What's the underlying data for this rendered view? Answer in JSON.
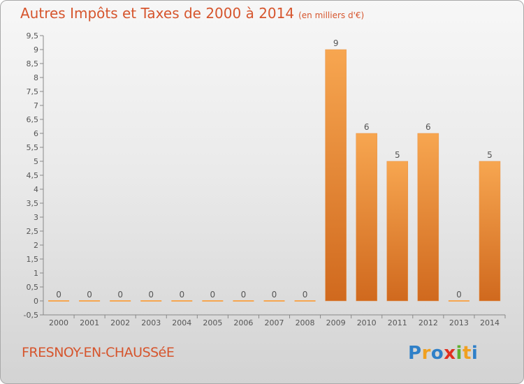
{
  "title": "Autres Impôts et Taxes de 2000 à 2014",
  "unit_note": "(en milliers d'€)",
  "commune": "FRESNOY-EN-CHAUSSéE",
  "logo": {
    "text": "Proxiti",
    "letters": [
      "P",
      "r",
      "o",
      "x",
      "i",
      "t",
      "i"
    ],
    "colors": [
      "#2f80c8",
      "#f0a020",
      "#2f80c8",
      "#e03020",
      "#60b030",
      "#f0a020",
      "#2f80c8"
    ]
  },
  "colors": {
    "bar_top": "#f7a650",
    "bar_bottom": "#d0691e",
    "label": "#555555"
  },
  "chart_data": {
    "type": "bar",
    "categories": [
      "2000",
      "2001",
      "2002",
      "2003",
      "2004",
      "2005",
      "2006",
      "2007",
      "2008",
      "2009",
      "2010",
      "2011",
      "2012",
      "2013",
      "2014"
    ],
    "values": [
      0,
      0,
      0,
      0,
      0,
      0,
      0,
      0,
      0,
      9,
      6,
      5,
      6,
      0,
      5
    ],
    "data_labels": [
      "0",
      "0",
      "0",
      "0",
      "0",
      "0",
      "0",
      "0",
      "0",
      "9",
      "6",
      "5",
      "6",
      "0",
      "5"
    ],
    "ylim": [
      -0.5,
      9.5
    ],
    "yticks": [
      -0.5,
      0,
      0.5,
      1,
      1.5,
      2,
      2.5,
      3,
      3.5,
      4,
      4.5,
      5,
      5.5,
      6,
      6.5,
      7,
      7.5,
      8,
      8.5,
      9,
      9.5
    ],
    "ytick_labels": [
      "-0,5",
      "0",
      "0,5",
      "1",
      "1,5",
      "2",
      "2,5",
      "3",
      "3,5",
      "4",
      "4,5",
      "5",
      "5,5",
      "6",
      "6,5",
      "7",
      "7,5",
      "8",
      "8,5",
      "9",
      "9,5"
    ],
    "grid": false
  }
}
